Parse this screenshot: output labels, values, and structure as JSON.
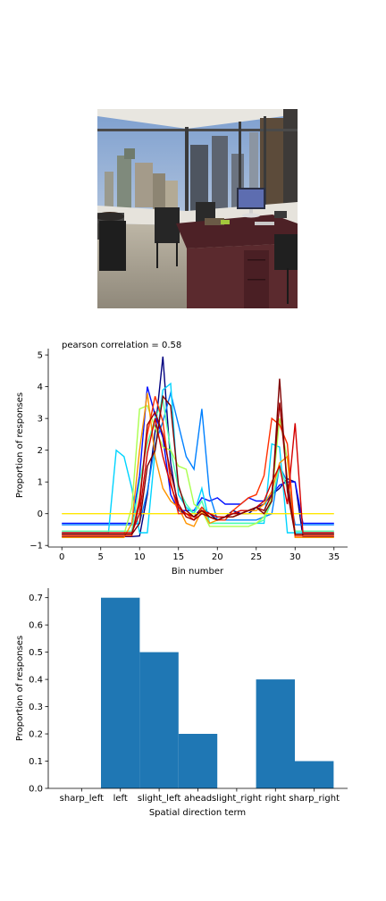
{
  "chart_data": [
    {
      "type": "line",
      "title": "pearson correlation = 0.58",
      "xlabel": "Bin number",
      "ylabel": "Proportion of responses",
      "xlim": [
        -1.75,
        36.75
      ],
      "ylim": [
        -1.05,
        5.2
      ],
      "xticks": [
        0,
        5,
        10,
        15,
        20,
        25,
        30,
        35
      ],
      "yticks": [
        -1,
        0,
        1,
        2,
        3,
        4,
        5
      ],
      "grid": false,
      "x": [
        0,
        1,
        2,
        3,
        4,
        5,
        6,
        7,
        8,
        9,
        10,
        11,
        12,
        13,
        14,
        15,
        16,
        17,
        18,
        19,
        20,
        21,
        22,
        23,
        24,
        25,
        26,
        27,
        28,
        29,
        30,
        31,
        32,
        33,
        34,
        35
      ],
      "series": [
        {
          "color": "#00007f",
          "values": [
            -0.72,
            -0.72,
            -0.72,
            -0.72,
            -0.72,
            -0.72,
            -0.72,
            -0.72,
            -0.72,
            -0.72,
            -0.7,
            0.6,
            2.6,
            4.95,
            1.6,
            0.1,
            0.0,
            -0.1,
            0.2,
            0.0,
            -0.2,
            -0.1,
            0.1,
            0.0,
            0.0,
            0.2,
            0.3,
            0.6,
            0.8,
            1.1,
            1.0,
            -0.72,
            -0.72,
            -0.72,
            -0.72,
            -0.72
          ]
        },
        {
          "color": "#0010ff",
          "values": [
            -0.3,
            -0.3,
            -0.3,
            -0.3,
            -0.3,
            -0.3,
            -0.3,
            -0.3,
            -0.3,
            -0.3,
            1.2,
            4.0,
            3.1,
            2.4,
            0.6,
            0.1,
            0.1,
            0.1,
            0.5,
            0.4,
            0.5,
            0.3,
            0.3,
            0.3,
            0.5,
            0.4,
            0.4,
            0.6,
            0.9,
            1.0,
            1.0,
            -0.3,
            -0.3,
            -0.3,
            -0.3,
            -0.3
          ]
        },
        {
          "color": "#0080ff",
          "values": [
            -0.35,
            -0.35,
            -0.35,
            -0.35,
            -0.35,
            -0.35,
            -0.35,
            -0.35,
            -0.35,
            -0.35,
            -0.3,
            0.7,
            2.2,
            2.9,
            3.8,
            2.8,
            1.8,
            1.4,
            3.3,
            0.6,
            -0.2,
            -0.2,
            -0.2,
            -0.2,
            -0.2,
            -0.2,
            -0.1,
            0.0,
            1.5,
            1.0,
            -0.35,
            -0.35,
            -0.35,
            -0.35,
            -0.35,
            -0.35
          ]
        },
        {
          "color": "#00d4ff",
          "values": [
            -0.6,
            -0.6,
            -0.6,
            -0.6,
            -0.6,
            -0.6,
            -0.6,
            2.0,
            1.8,
            0.8,
            -0.6,
            -0.6,
            2.0,
            3.9,
            4.1,
            0.6,
            0.2,
            0.0,
            0.8,
            -0.3,
            -0.3,
            -0.3,
            -0.3,
            -0.3,
            -0.3,
            -0.3,
            -0.3,
            2.2,
            2.1,
            -0.6,
            -0.6,
            -0.6,
            -0.6,
            -0.6,
            -0.6,
            -0.6
          ]
        },
        {
          "color": "#4dffaa",
          "values": [
            -0.55,
            -0.55,
            -0.55,
            -0.55,
            -0.55,
            -0.55,
            -0.55,
            -0.55,
            -0.55,
            -0.55,
            1.0,
            2.2,
            3.0,
            3.6,
            2.0,
            0.8,
            0.3,
            0.0,
            0.4,
            -0.3,
            -0.3,
            -0.3,
            -0.3,
            -0.3,
            -0.3,
            -0.3,
            -0.2,
            0.4,
            1.5,
            0.8,
            -0.55,
            -0.55,
            -0.55,
            -0.55,
            -0.55,
            -0.55
          ]
        },
        {
          "color": "#aaff4d",
          "values": [
            -0.65,
            -0.65,
            -0.65,
            -0.65,
            -0.65,
            -0.65,
            -0.65,
            -0.65,
            -0.65,
            0.2,
            3.3,
            3.4,
            2.7,
            2.1,
            2.0,
            1.5,
            1.4,
            0.3,
            0.1,
            -0.4,
            -0.4,
            -0.4,
            -0.4,
            -0.4,
            -0.4,
            -0.3,
            -0.1,
            0.5,
            3.0,
            1.7,
            -0.65,
            -0.65,
            -0.65,
            -0.65,
            -0.65,
            -0.65
          ]
        },
        {
          "color": "#ffe600",
          "values": [
            0.0,
            0.0,
            0.0,
            0.0,
            0.0,
            0.0,
            0.0,
            0.0,
            0.0,
            0.0,
            0.0,
            0.0,
            0.0,
            0.0,
            0.0,
            0.0,
            0.0,
            0.0,
            0.0,
            0.0,
            0.0,
            0.0,
            0.0,
            0.0,
            0.0,
            0.0,
            0.0,
            0.0,
            0.0,
            0.0,
            0.0,
            0.0,
            0.0,
            0.0,
            0.0,
            0.0
          ]
        },
        {
          "color": "#ff9400",
          "values": [
            -0.75,
            -0.75,
            -0.75,
            -0.75,
            -0.75,
            -0.75,
            -0.75,
            -0.75,
            -0.75,
            -0.3,
            2.0,
            3.8,
            1.8,
            0.8,
            0.4,
            0.2,
            -0.3,
            -0.4,
            0.1,
            -0.3,
            -0.2,
            -0.1,
            -0.1,
            0.0,
            0.1,
            0.1,
            0.3,
            0.7,
            1.6,
            1.8,
            -0.75,
            -0.75,
            -0.75,
            -0.75,
            -0.75,
            -0.75
          ]
        },
        {
          "color": "#ff3000",
          "values": [
            -0.7,
            -0.7,
            -0.7,
            -0.7,
            -0.7,
            -0.7,
            -0.7,
            -0.7,
            -0.7,
            -0.7,
            0.5,
            2.5,
            3.7,
            2.9,
            1.0,
            0.0,
            0.0,
            -0.2,
            0.2,
            -0.1,
            -0.2,
            -0.2,
            0.1,
            0.3,
            0.5,
            0.6,
            1.2,
            3.0,
            2.8,
            2.2,
            -0.7,
            -0.7,
            -0.7,
            -0.7,
            -0.7,
            -0.7
          ]
        },
        {
          "color": "#d40000",
          "values": [
            -0.6,
            -0.6,
            -0.6,
            -0.6,
            -0.6,
            -0.6,
            -0.6,
            -0.6,
            -0.6,
            -0.6,
            0.0,
            1.9,
            3.0,
            1.8,
            0.9,
            0.2,
            0.0,
            -0.1,
            0.1,
            0.0,
            -0.1,
            -0.1,
            0.0,
            0.1,
            0.1,
            0.2,
            0.4,
            1.0,
            1.5,
            0.3,
            2.85,
            -0.6,
            -0.6,
            -0.6,
            -0.6,
            -0.6
          ]
        },
        {
          "color": "#a00000",
          "values": [
            -0.65,
            -0.65,
            -0.65,
            -0.65,
            -0.65,
            -0.65,
            -0.65,
            -0.65,
            -0.65,
            -0.65,
            0.3,
            2.8,
            3.2,
            2.5,
            1.3,
            0.3,
            -0.1,
            -0.2,
            0.0,
            -0.1,
            -0.2,
            -0.1,
            0.0,
            0.0,
            0.1,
            0.2,
            0.1,
            0.6,
            3.5,
            1.0,
            -0.65,
            -0.65,
            -0.65,
            -0.65,
            -0.65,
            -0.65
          ]
        },
        {
          "color": "#7f0000",
          "values": [
            -0.65,
            -0.65,
            -0.65,
            -0.65,
            -0.65,
            -0.65,
            -0.65,
            -0.65,
            -0.65,
            -0.65,
            -0.3,
            1.5,
            2.0,
            3.7,
            3.4,
            0.9,
            0.1,
            -0.1,
            0.1,
            -0.1,
            -0.2,
            -0.1,
            -0.1,
            0.0,
            0.1,
            0.2,
            0.0,
            0.4,
            4.25,
            0.7,
            -0.65,
            -0.65,
            -0.65,
            -0.65,
            -0.65,
            -0.65
          ]
        }
      ]
    },
    {
      "type": "bar",
      "xlabel": "Spatial direction term",
      "ylabel": "Proportion of responses",
      "ylim": [
        0,
        0.735
      ],
      "yticks": [
        0.0,
        0.1,
        0.2,
        0.3,
        0.4,
        0.5,
        0.6,
        0.7
      ],
      "ytick_labels": [
        "0.0",
        "0.1",
        "0.2",
        "0.3",
        "0.4",
        "0.5",
        "0.6",
        "0.7"
      ],
      "categories": [
        "sharp_left",
        "left",
        "slight_left",
        "ahead",
        "slight_right",
        "right",
        "sharp_right"
      ],
      "values": [
        0.0,
        0.7,
        0.5,
        0.2,
        0.0,
        0.4,
        0.1
      ],
      "bar_color": "#1f77b4",
      "grid": false
    }
  ]
}
